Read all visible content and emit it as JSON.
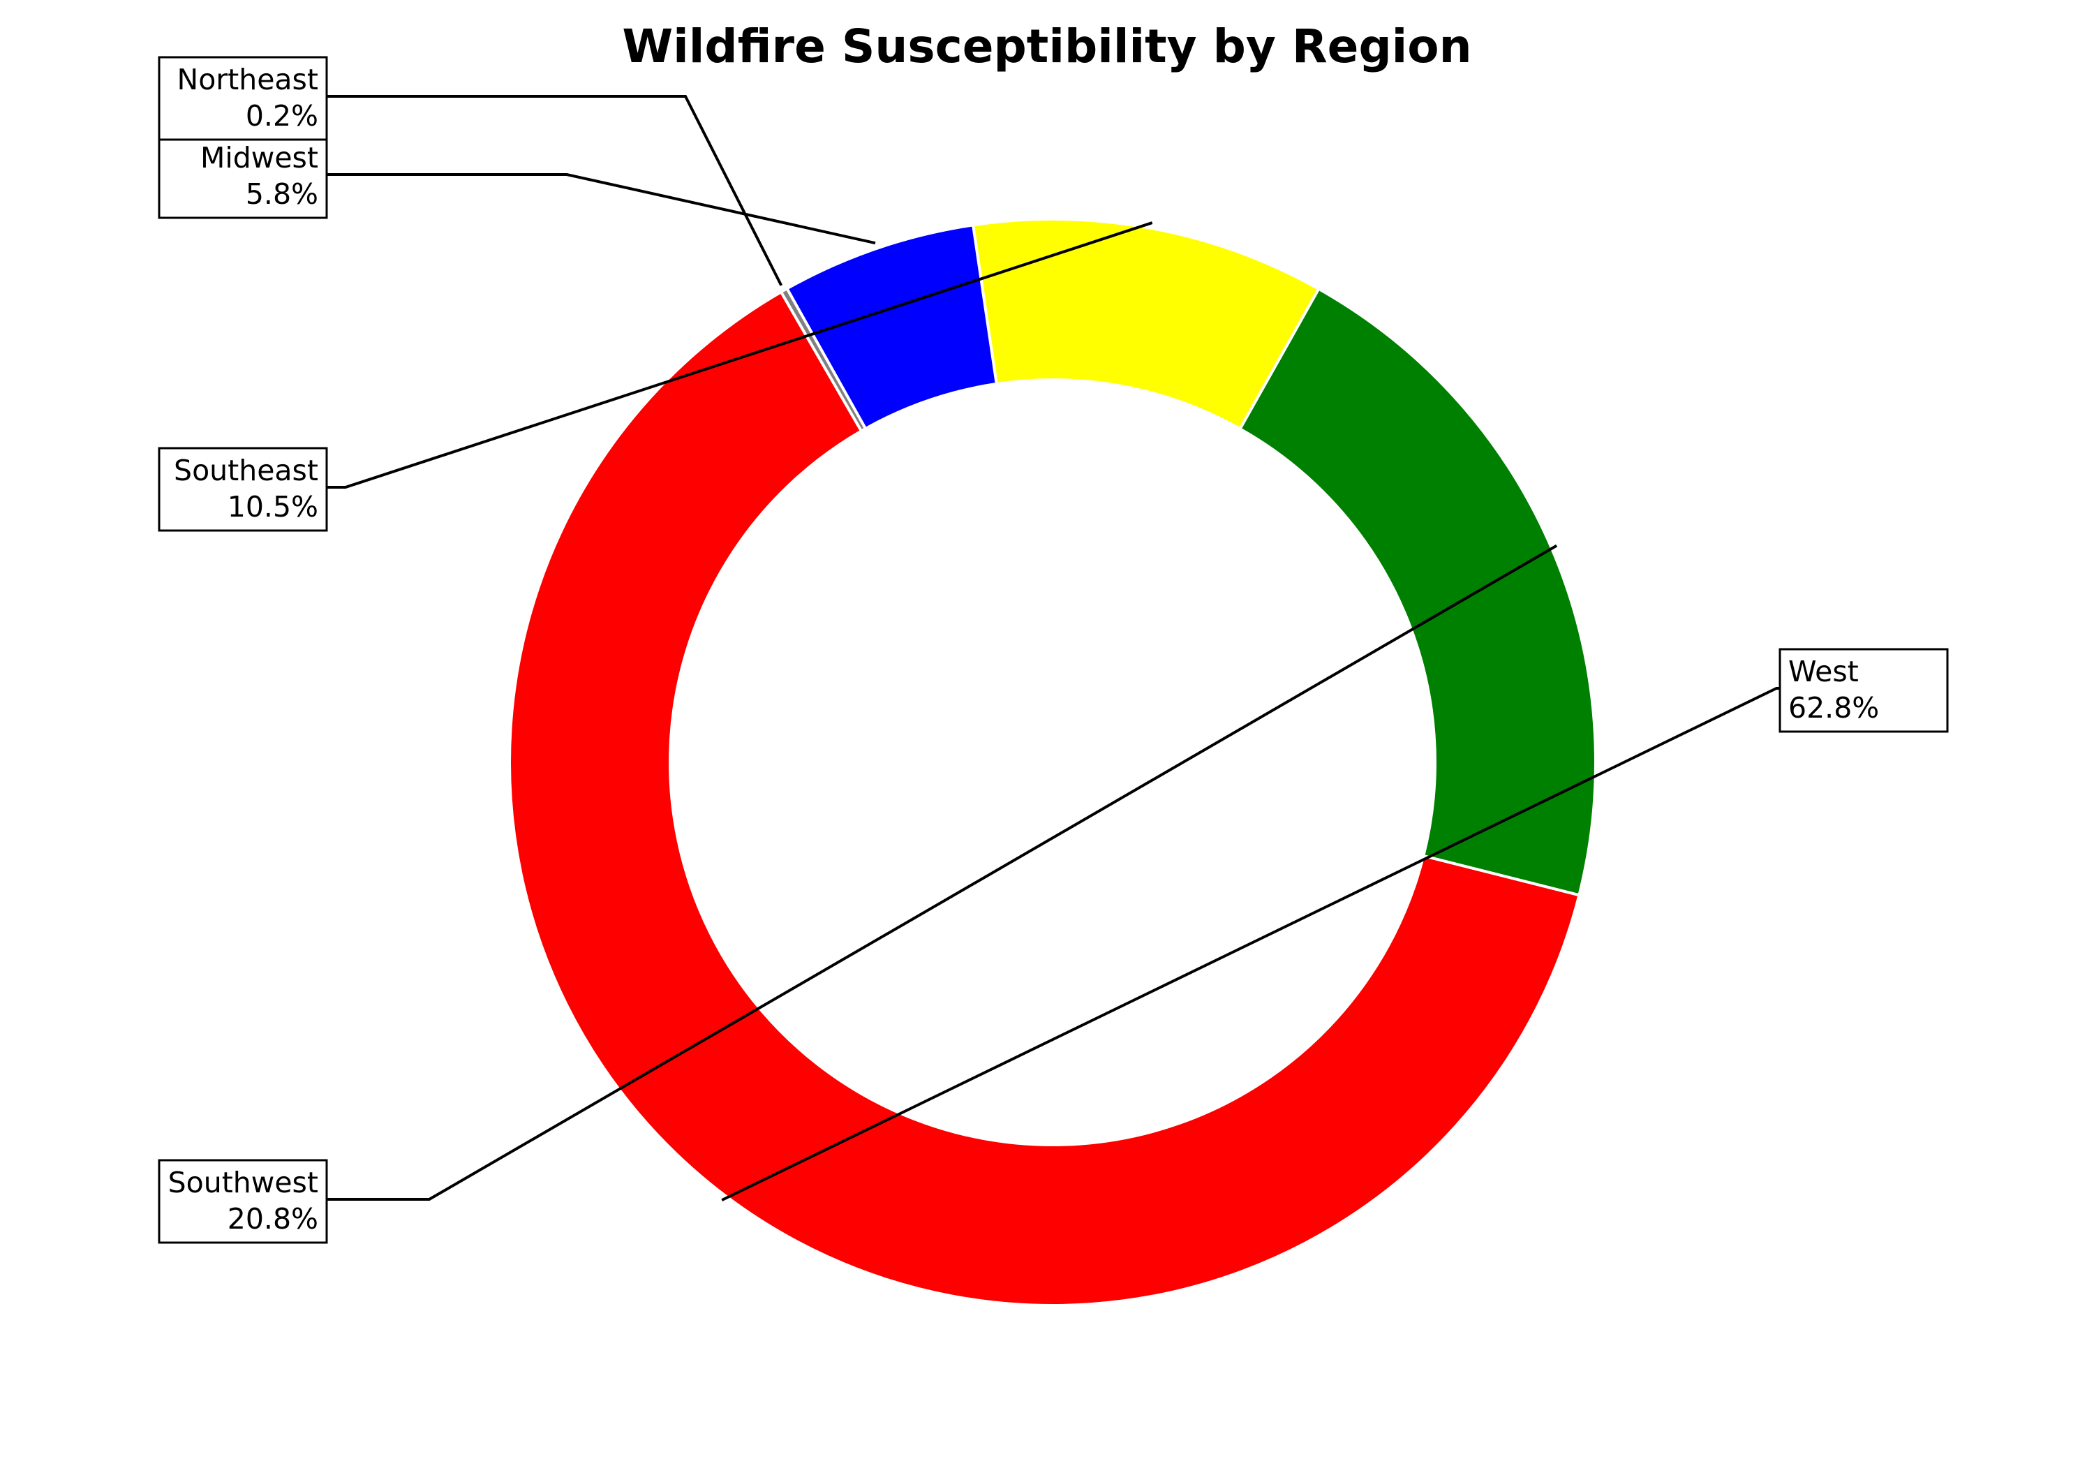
{
  "chart_data": {
    "type": "pie",
    "style": "donut",
    "title": "Wildfire Susceptibility by Region",
    "categories": [
      "West",
      "Southwest",
      "Southeast",
      "Midwest",
      "Northeast"
    ],
    "values": [
      62.8,
      20.8,
      10.5,
      5.8,
      0.2
    ],
    "labels": [
      "62.8%",
      "20.8%",
      "10.5%",
      "5.8%",
      "0.2%"
    ],
    "colors": [
      "#ff0000",
      "#008000",
      "#ffff00",
      "#0000ff",
      "#808080"
    ],
    "legend": "none",
    "grid": false
  }
}
